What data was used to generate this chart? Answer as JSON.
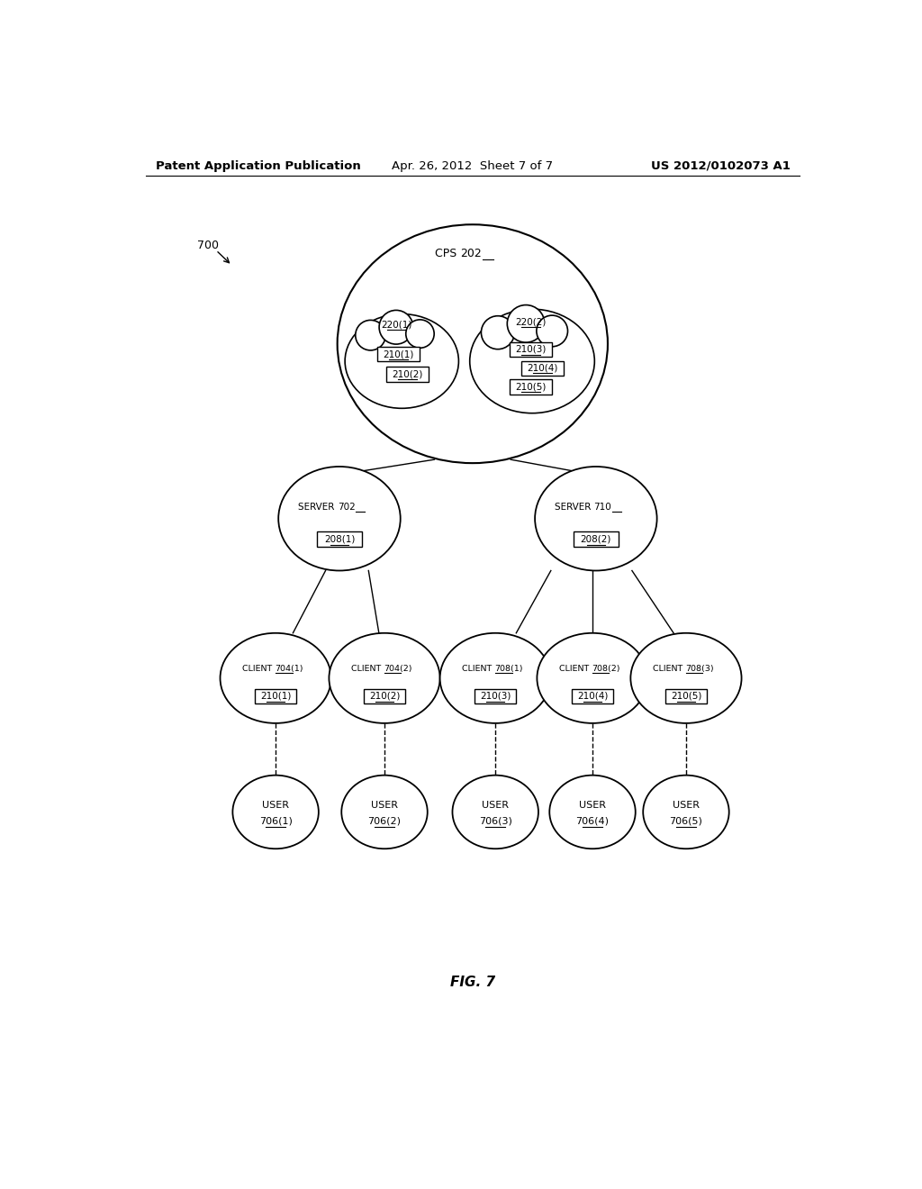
{
  "bg_color": "#ffffff",
  "header_left": "Patent Application Publication",
  "header_center": "Apr. 26, 2012  Sheet 7 of 7",
  "header_right": "US 2012/0102073 A1",
  "fig_label": "FIG. 7",
  "diagram_label": "700",
  "cps_label": "CPS 202",
  "cps_num": "202",
  "cloud1_label": "220(1)",
  "cloud2_label": "220(2)",
  "cps_items": [
    "210(1)",
    "210(2)",
    "210(3)",
    "210(4)",
    "210(5)"
  ],
  "server1_label": "SERVER 702",
  "server1_num": "702",
  "server1_item": "208(1)",
  "server2_label": "SERVER 710",
  "server2_num": "710",
  "server2_item": "208(2)",
  "clients_left": [
    "CLIENT 704(1)",
    "CLIENT 704(2)"
  ],
  "clients_left_nums": [
    "704(1)",
    "704(2)"
  ],
  "clients_left_items": [
    "210(1)",
    "210(2)"
  ],
  "clients_right": [
    "CLIENT 708(1)",
    "CLIENT 708(2)",
    "CLIENT 708(3)"
  ],
  "clients_right_nums": [
    "708(1)",
    "708(2)",
    "708(3)"
  ],
  "clients_right_items": [
    "210(3)",
    "210(4)",
    "210(5)"
  ],
  "user_line1": "USER",
  "user_nums": [
    "706(1)",
    "706(2)",
    "706(3)",
    "706(4)",
    "706(5)"
  ]
}
